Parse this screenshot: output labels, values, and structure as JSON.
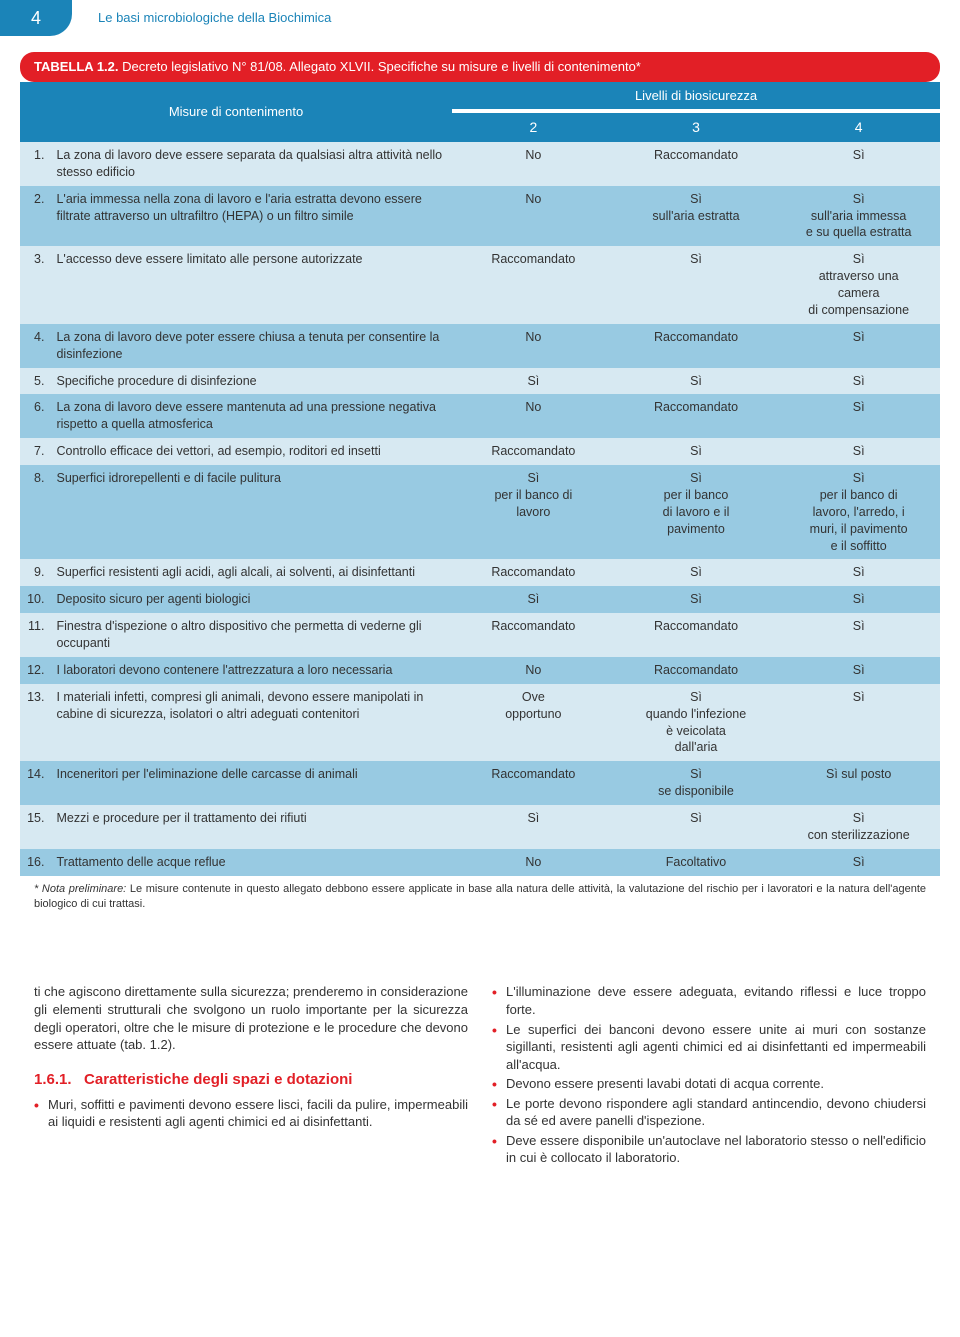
{
  "page_number": "4",
  "header_title": "Le basi microbiologiche della Biochimica",
  "table": {
    "caption_bold": "TABELLA 1.2.",
    "caption_rest": " Decreto legislativo N° 81/08. Allegato XLVII. Specifiche su misure e livelli di contenimento*",
    "col_misure": "Misure di contenimento",
    "col_livelli": "Livelli di biosicurezza",
    "lv2": "2",
    "lv3": "3",
    "lv4": "4",
    "rows": [
      {
        "n": "1.",
        "m": "La zona di lavoro deve essere separata da qualsiasi altra attività nello stesso edificio",
        "c2": "No",
        "c3": "Raccomandato",
        "c4": "Sì"
      },
      {
        "n": "2.",
        "m": "L'aria immessa nella zona di lavoro e l'aria estratta devono essere filtrate attraverso un ultrafiltro (HEPA) o un filtro simile",
        "c2": "No",
        "c3": "Sì\nsull'aria estratta",
        "c4": "Sì\nsull'aria immessa\ne su quella estratta"
      },
      {
        "n": "3.",
        "m": "L'accesso deve essere limitato alle persone autorizzate",
        "c2": "Raccomandato",
        "c3": "Sì",
        "c4": "Sì\nattraverso una\ncamera\ndi compensazione"
      },
      {
        "n": "4.",
        "m": "La zona di lavoro deve poter essere chiusa a tenuta per consentire la disinfezione",
        "c2": "No",
        "c3": "Raccomandato",
        "c4": "Sì"
      },
      {
        "n": "5.",
        "m": "Specifiche procedure di disinfezione",
        "c2": "Sì",
        "c3": "Sì",
        "c4": "Sì"
      },
      {
        "n": "6.",
        "m": "La zona di lavoro deve essere mantenuta ad una pressione negativa rispetto a quella atmosferica",
        "c2": "No",
        "c3": "Raccomandato",
        "c4": "Sì"
      },
      {
        "n": "7.",
        "m": "Controllo efficace dei vettori, ad esempio, roditori ed insetti",
        "c2": "Raccomandato",
        "c3": "Sì",
        "c4": "Sì"
      },
      {
        "n": "8.",
        "m": "Superfici idrorepellenti e di facile pulitura",
        "c2": "Sì\nper il banco di\nlavoro",
        "c3": "Sì\nper il banco\ndi lavoro e il\npavimento",
        "c4": "Sì\nper il banco di\nlavoro, l'arredo, i\nmuri, il pavimento\ne il soffitto"
      },
      {
        "n": "9.",
        "m": "Superfici resistenti agli acidi, agli alcali, ai solventi, ai disinfettanti",
        "c2": "Raccomandato",
        "c3": "Sì",
        "c4": "Sì"
      },
      {
        "n": "10.",
        "m": "Deposito sicuro per agenti biologici",
        "c2": "Sì",
        "c3": "Sì",
        "c4": "Sì"
      },
      {
        "n": "11.",
        "m": "Finestra d'ispezione o altro dispositivo che permetta di vederne gli occupanti",
        "c2": "Raccomandato",
        "c3": "Raccomandato",
        "c4": "Sì"
      },
      {
        "n": "12.",
        "m": "I laboratori devono contenere l'attrezzatura a loro necessaria",
        "c2": "No",
        "c3": "Raccomandato",
        "c4": "Sì"
      },
      {
        "n": "13.",
        "m": "I materiali infetti, compresi gli animali, devono essere manipolati in cabine di sicurezza, isolatori o altri adeguati contenitori",
        "c2": "Ove\nopportuno",
        "c3": "Sì\nquando l'infezione\nè veicolata\ndall'aria",
        "c4": "Sì"
      },
      {
        "n": "14.",
        "m": "Inceneritori per l'eliminazione delle carcasse di animali",
        "c2": "Raccomandato",
        "c3": "Sì\nse disponibile",
        "c4": "Sì sul posto"
      },
      {
        "n": "15.",
        "m": "Mezzi e procedure per il trattamento dei rifiuti",
        "c2": "Sì",
        "c3": "Sì",
        "c4": "Sì\ncon sterilizzazione"
      },
      {
        "n": "16.",
        "m": "Trattamento delle acque reflue",
        "c2": "No",
        "c3": "Facoltativo",
        "c4": "Sì"
      }
    ]
  },
  "footnote_label": "* Nota preliminare:",
  "footnote_text": " Le misure contenute in questo allegato debbono essere applicate in base alla natura delle attività, la valutazione del rischio per i lavoratori e la natura dell'agente biologico di cui trattasi.",
  "body": {
    "left_intro": "ti che agiscono direttamente sulla sicurezza; prenderemo in considerazione gli elementi strutturali che svolgono un ruolo importante per la sicurezza degli operatori, oltre che le misure di protezione e le procedure che devono essere attuate (tab. 1.2).",
    "section_num": "1.6.1.",
    "section_title": "Caratteristiche degli spazi e dotazioni",
    "left_bullets": [
      "Muri, soffitti e pavimenti devono essere lisci, facili da pulire, impermeabili ai liquidi e resistenti agli agenti chimici ed ai disinfettanti."
    ],
    "right_bullets": [
      "L'illuminazione deve essere adeguata, evitando riflessi e luce troppo forte.",
      "Le superfici dei banconi devono essere unite ai muri con sostanze sigillanti, resistenti agli agenti chimici ed ai disinfettanti ed impermeabili all'acqua.",
      "Devono essere presenti lavabi dotati di acqua corrente.",
      "Le porte devono rispondere agli standard antincendio, devono chiudersi da sé ed avere panelli d'ispezione.",
      "Deve essere disponibile un'autoclave nel laboratorio stesso o nell'edificio in cui è collocato il laboratorio."
    ]
  },
  "colors": {
    "blue_header": "#1b84b8",
    "row_light": "#d7e9f2",
    "row_dark": "#98cae2",
    "red": "#e21f26"
  }
}
